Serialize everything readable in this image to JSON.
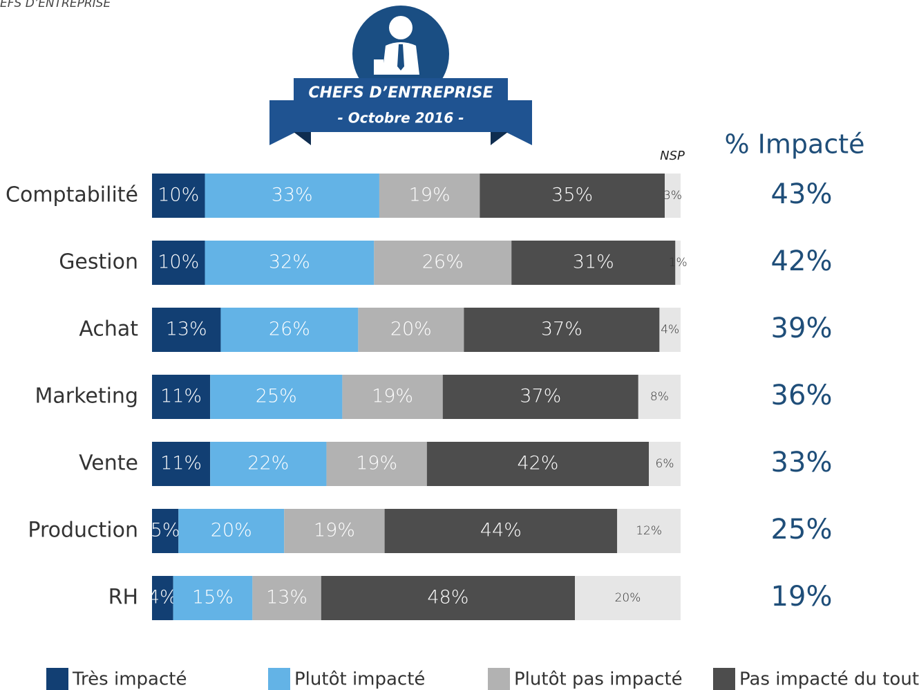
{
  "chart_data": {
    "type": "stacked-bar-horizontal",
    "header_fragment": "EFS D’ENTREPRISE",
    "badge_title": "CHEFS D’ENTREPRISE",
    "badge_subtitle": "- Octobre 2016 -",
    "categories": [
      "Comptabilité",
      "Gestion",
      "Achat",
      "Marketing",
      "Vente",
      "Production",
      "RH"
    ],
    "xlim": [
      0,
      100
    ],
    "series": [
      {
        "name": "Très impacté",
        "color": "#123f73",
        "values": [
          10,
          10,
          13,
          11,
          11,
          5,
          4
        ],
        "value_labels": [
          "10%",
          "10%",
          "13%",
          "11%",
          "11%",
          "5%",
          "4%"
        ]
      },
      {
        "name": "Plutôt impacté",
        "color": "#63b3e6",
        "values": [
          33,
          32,
          26,
          25,
          22,
          20,
          15
        ],
        "value_labels": [
          "33%",
          "32%",
          "26%",
          "25%",
          "22%",
          "20%",
          "15%"
        ]
      },
      {
        "name": "Plutôt pas impacté",
        "color": "#b2b2b2",
        "values": [
          19,
          26,
          20,
          19,
          19,
          19,
          13
        ],
        "value_labels": [
          "19%",
          "26%",
          "20%",
          "19%",
          "19%",
          "19%",
          "13%"
        ]
      },
      {
        "name": "Pas impacté du tout",
        "color": "#4d4d4d",
        "values": [
          35,
          31,
          37,
          37,
          42,
          44,
          48
        ],
        "value_labels": [
          "35%",
          "31%",
          "37%",
          "37%",
          "42%",
          "44%",
          "48%"
        ]
      },
      {
        "name": "NSP",
        "color": "#e6e6e6",
        "values": [
          3,
          1,
          4,
          8,
          6,
          12,
          20
        ],
        "value_labels": [
          "3%",
          "1%",
          "4%",
          "8%",
          "6%",
          "12%",
          "20%"
        ]
      }
    ],
    "impacted": {
      "name": "% Impacté",
      "color": "#1f4e79",
      "values": [
        43,
        42,
        39,
        36,
        33,
        25,
        19
      ],
      "value_labels": [
        "43%",
        "42%",
        "39%",
        "36%",
        "33%",
        "25%",
        "19%"
      ]
    }
  }
}
